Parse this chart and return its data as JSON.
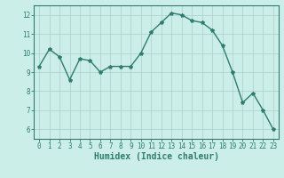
{
  "x": [
    0,
    1,
    2,
    3,
    4,
    5,
    6,
    7,
    8,
    9,
    10,
    11,
    12,
    13,
    14,
    15,
    16,
    17,
    18,
    19,
    20,
    21,
    22,
    23
  ],
  "y": [
    9.3,
    10.2,
    9.8,
    8.6,
    9.7,
    9.6,
    9.0,
    9.3,
    9.3,
    9.3,
    10.0,
    11.1,
    11.6,
    12.1,
    12.0,
    11.7,
    11.6,
    11.2,
    10.4,
    9.0,
    7.4,
    7.9,
    7.0,
    6.0
  ],
  "line_color": "#2e7d6e",
  "bg_color": "#cceee8",
  "grid_color": "#b0d5ce",
  "xlabel": "Humidex (Indice chaleur)",
  "ylim": [
    5.5,
    12.5
  ],
  "xlim": [
    -0.5,
    23.5
  ],
  "yticks": [
    6,
    7,
    8,
    9,
    10,
    11,
    12
  ],
  "xticks": [
    0,
    1,
    2,
    3,
    4,
    5,
    6,
    7,
    8,
    9,
    10,
    11,
    12,
    13,
    14,
    15,
    16,
    17,
    18,
    19,
    20,
    21,
    22,
    23
  ],
  "tick_fontsize": 5.5,
  "xlabel_fontsize": 7,
  "linewidth": 1.0,
  "markersize": 3
}
